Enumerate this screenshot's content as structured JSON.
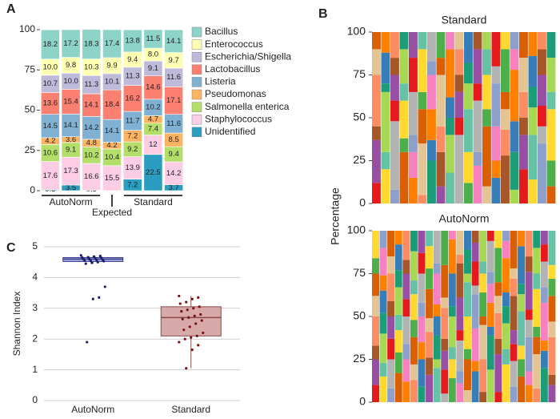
{
  "chart_data": [
    {
      "type": "stacked_bar",
      "panel": "A",
      "categories": [
        null,
        null,
        null,
        null,
        null,
        null,
        null
      ],
      "groups": [
        {
          "label": "AutoNorm",
          "size": 3
        },
        {
          "label": "Expected",
          "size": 1
        },
        {
          "label": "Standard",
          "size": 3
        }
      ],
      "ylim": [
        0,
        100
      ],
      "yticks": [
        0,
        25,
        50,
        75,
        100
      ],
      "series": [
        {
          "name": "Bacillus",
          "color": "#8dd3c7",
          "values": [
            18.2,
            17.2,
            18.3,
            17.4,
            13.8,
            11.5,
            14.1
          ]
        },
        {
          "name": "Enterococcus",
          "color": "#ffffb3",
          "values": [
            10.0,
            9.8,
            10.3,
            9.9,
            9.4,
            8.0,
            9.7
          ],
          "value_labels": [
            "10.0",
            "9.8",
            "10.3",
            "9.9",
            "9.4",
            "8.0",
            "9.7"
          ]
        },
        {
          "name": "Escherichia/Shigella",
          "color": "#bebada",
          "values": [
            10.7,
            10.0,
            11.3,
            10.1,
            11.3,
            9.1,
            11.6
          ],
          "value_labels": [
            "10.7",
            "10.0",
            "11.3",
            "10.1",
            "11.3",
            "9.1",
            "11.6"
          ]
        },
        {
          "name": "Lactobacillus",
          "color": "#fb8072",
          "values": [
            13.6,
            15.4,
            14.1,
            18.4,
            16.2,
            14.6,
            17.1
          ]
        },
        {
          "name": "Listeria",
          "color": "#80b1d3",
          "values": [
            14.5,
            14.1,
            14.2,
            14.1,
            11.7,
            10.2,
            11.6
          ]
        },
        {
          "name": "Pseudomonas",
          "color": "#fdb462",
          "values": [
            4.2,
            3.6,
            4.8,
            4.2,
            7.2,
            4.7,
            8.5
          ]
        },
        {
          "name": "Salmonella enterica",
          "color": "#b3de69",
          "values": [
            10.6,
            9.1,
            10.2,
            10.4,
            9.2,
            7.4,
            9.4
          ]
        },
        {
          "name": "Staphylococcus",
          "color": "#fccde5",
          "values": [
            17.6,
            17.3,
            16.6,
            15.5,
            13.9,
            12.0,
            14.2
          ]
        },
        {
          "name": "Unidentified",
          "color": "#2a9dc0",
          "values": [
            0.5,
            3.5,
            0.3,
            null,
            7.2,
            22.5,
            3.7
          ]
        }
      ]
    },
    {
      "type": "stacked_columns",
      "panel": "B",
      "title": "Standard",
      "ylabel": "Percentage",
      "ylim": [
        0,
        100
      ],
      "yticks": [
        0,
        25,
        50,
        75,
        100
      ],
      "palette": [
        "#e41a1c",
        "#377eb8",
        "#4daf4a",
        "#984ea3",
        "#ff7f00",
        "#ffd92f",
        "#a65628",
        "#f781bf",
        "#66c2a5",
        "#fc8d62",
        "#8da0cb",
        "#a6d854",
        "#e5c494",
        "#b3b3b3",
        "#1b9e77",
        "#d95f02"
      ],
      "columns": [
        [
          12,
          25,
          8,
          30,
          15,
          10
        ],
        [
          20,
          10,
          35,
          5,
          18,
          12
        ],
        [
          8,
          40,
          12,
          15,
          10,
          15
        ],
        [
          30,
          8,
          22,
          10,
          20,
          10
        ],
        [
          15,
          15,
          10,
          25,
          20,
          15
        ],
        [
          5,
          30,
          20,
          10,
          25,
          10
        ],
        [
          25,
          12,
          18,
          20,
          8,
          17
        ],
        [
          10,
          20,
          15,
          30,
          10,
          15
        ],
        [
          18,
          22,
          10,
          12,
          28,
          10
        ],
        [
          40,
          10,
          15,
          10,
          15,
          10
        ],
        [
          12,
          18,
          25,
          15,
          12,
          18
        ],
        [
          22,
          8,
          30,
          10,
          20,
          10
        ],
        [
          10,
          35,
          10,
          20,
          15,
          10
        ],
        [
          15,
          10,
          20,
          25,
          10,
          20
        ],
        [
          28,
          15,
          12,
          10,
          25,
          10
        ],
        [
          8,
          22,
          18,
          30,
          12,
          10
        ],
        [
          20,
          20,
          10,
          15,
          20,
          15
        ],
        [
          14,
          26,
          16,
          12,
          18,
          14
        ],
        [
          35,
          10,
          12,
          18,
          15,
          10
        ],
        [
          10,
          15,
          30,
          10,
          20,
          15
        ]
      ]
    },
    {
      "type": "stacked_columns",
      "title": "AutoNorm",
      "ylim": [
        0,
        100
      ],
      "yticks": [
        0,
        25,
        50,
        75,
        100
      ],
      "palette": [
        "#e41a1c",
        "#377eb8",
        "#4daf4a",
        "#984ea3",
        "#ff7f00",
        "#ffd92f",
        "#a65628",
        "#f781bf",
        "#66c2a5",
        "#fc8d62",
        "#8da0cb",
        "#a6d854",
        "#e5c494",
        "#b3b3b3",
        "#1b9e77",
        "#d95f02"
      ],
      "columns": [
        [
          10,
          15,
          8,
          17,
          12,
          13,
          9,
          16
        ],
        [
          15,
          8,
          17,
          12,
          13,
          9,
          16,
          10
        ],
        [
          8,
          17,
          12,
          13,
          9,
          16,
          10,
          15
        ],
        [
          17,
          12,
          13,
          9,
          16,
          10,
          15,
          8
        ],
        [
          12,
          13,
          9,
          16,
          10,
          15,
          8,
          17
        ],
        [
          13,
          9,
          16,
          10,
          15,
          8,
          17,
          12
        ],
        [
          9,
          16,
          10,
          15,
          8,
          17,
          12,
          13
        ],
        [
          16,
          10,
          15,
          8,
          17,
          12,
          13,
          9
        ],
        [
          20,
          5,
          14,
          11,
          7,
          18,
          6,
          19
        ],
        [
          5,
          14,
          11,
          7,
          18,
          6,
          19,
          20
        ],
        [
          14,
          11,
          7,
          18,
          6,
          19,
          20,
          5
        ],
        [
          11,
          7,
          18,
          6,
          19,
          20,
          5,
          14
        ],
        [
          7,
          18,
          6,
          19,
          20,
          5,
          14,
          11
        ],
        [
          18,
          6,
          19,
          20,
          5,
          14,
          11,
          7
        ],
        [
          6,
          19,
          20,
          5,
          14,
          11,
          7,
          18
        ],
        [
          19,
          20,
          5,
          14,
          11,
          7,
          18,
          6
        ],
        [
          6,
          22,
          9,
          15,
          10,
          8,
          20,
          10
        ],
        [
          22,
          9,
          15,
          10,
          8,
          20,
          10,
          6
        ],
        [
          9,
          15,
          10,
          8,
          20,
          10,
          6,
          22
        ],
        [
          15,
          10,
          8,
          20,
          10,
          6,
          22,
          9
        ],
        [
          10,
          8,
          20,
          10,
          6,
          22,
          9,
          15
        ],
        [
          8,
          20,
          10,
          6,
          22,
          9,
          15,
          10
        ],
        [
          20,
          10,
          6,
          22,
          9,
          15,
          10,
          8
        ],
        [
          10,
          6,
          22,
          9,
          15,
          10,
          8,
          20
        ]
      ]
    },
    {
      "type": "box",
      "panel": "C",
      "ylabel": "Shannon Index",
      "ylim": [
        0,
        5
      ],
      "yticks": [
        0,
        1,
        2,
        3,
        4,
        5
      ],
      "grid": true,
      "categories": [
        "AutoNorm",
        "Standard"
      ],
      "series": [
        {
          "fill": "#a5a8dc",
          "color": "#3b3f8c",
          "point_color": "#1a1f6e",
          "min": 4.45,
          "q1": 4.52,
          "median": 4.6,
          "q3": 4.65,
          "max": 4.72,
          "points": [
            4.72,
            4.7,
            4.68,
            4.66,
            4.65,
            4.64,
            4.62,
            4.6,
            4.6,
            4.58,
            4.57,
            4.55,
            4.55,
            4.53,
            4.5,
            4.48,
            4.45,
            3.7,
            3.35,
            3.3,
            1.9
          ]
        },
        {
          "fill": "#d8a9a9",
          "color": "#8a4a4a",
          "point_color": "#7a1010",
          "min": 1.05,
          "q1": 2.1,
          "median": 2.7,
          "q3": 3.05,
          "max": 3.4,
          "points": [
            3.4,
            3.35,
            3.3,
            3.2,
            3.15,
            3.05,
            3.0,
            2.95,
            2.9,
            2.8,
            2.75,
            2.7,
            2.65,
            2.6,
            2.5,
            2.4,
            2.3,
            2.2,
            2.1,
            2.05,
            2.0,
            1.9,
            1.8,
            1.65,
            1.05
          ]
        }
      ]
    }
  ]
}
